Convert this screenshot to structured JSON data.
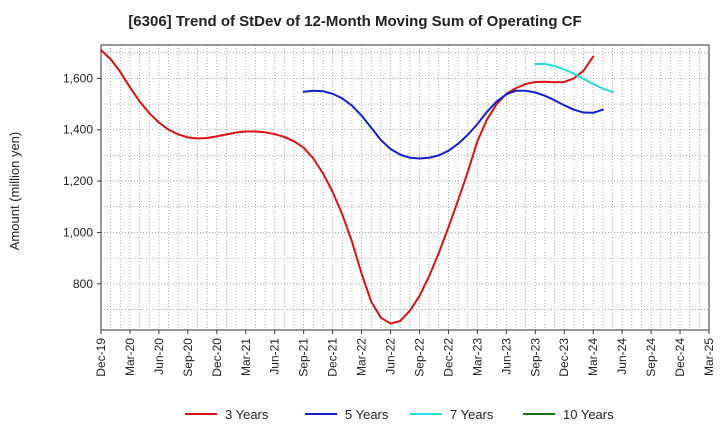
{
  "chart_data": {
    "type": "line",
    "title": "[6306]  Trend of StDev of 12-Month Moving Sum of Operating CF",
    "xlabel": "",
    "ylabel": "Amount (million yen)",
    "ylim": [
      620,
      1730
    ],
    "yticks": [
      800,
      1000,
      1200,
      1400,
      1600
    ],
    "ytick_labels": [
      "800",
      "1,000",
      "1,200",
      "1,400",
      "1,600"
    ],
    "x_start": "Dec-19",
    "x_end": "Mar-25",
    "xtick_labels": [
      "Dec-19",
      "Mar-20",
      "Jun-20",
      "Sep-20",
      "Dec-20",
      "Mar-21",
      "Jun-21",
      "Sep-21",
      "Dec-21",
      "Mar-22",
      "Jun-22",
      "Sep-22",
      "Dec-22",
      "Mar-23",
      "Jun-23",
      "Sep-23",
      "Dec-23",
      "Mar-24",
      "Jun-24",
      "Sep-24",
      "Dec-24",
      "Mar-25"
    ],
    "grid": true,
    "legend_position": "bottom",
    "series": [
      {
        "name": "3 Years",
        "color": "#dd1111",
        "start_month": 0,
        "values": [
          1710,
          1675,
          1625,
          1565,
          1510,
          1465,
          1428,
          1400,
          1382,
          1370,
          1366,
          1368,
          1374,
          1382,
          1389,
          1393,
          1393,
          1390,
          1383,
          1372,
          1355,
          1330,
          1288,
          1230,
          1158,
          1070,
          965,
          840,
          730,
          668,
          645,
          655,
          695,
          752,
          830,
          920,
          1020,
          1125,
          1235,
          1355,
          1440,
          1500,
          1540,
          1562,
          1578,
          1586,
          1587,
          1585,
          1586,
          1600,
          1630,
          1685
        ]
      },
      {
        "name": "5 Years",
        "color": "#1122cc",
        "start_month": 21,
        "values": [
          1548,
          1552,
          1550,
          1540,
          1522,
          1494,
          1455,
          1408,
          1360,
          1325,
          1303,
          1291,
          1288,
          1291,
          1300,
          1318,
          1345,
          1380,
          1422,
          1470,
          1510,
          1538,
          1552,
          1552,
          1545,
          1532,
          1515,
          1495,
          1478,
          1467,
          1466,
          1478
        ]
      },
      {
        "name": "7 Years",
        "color": "#22dddd",
        "start_month": 45,
        "values": [
          1656,
          1656,
          1648,
          1635,
          1618,
          1598,
          1578,
          1560,
          1547
        ]
      },
      {
        "name": "10 Years",
        "color": "#117711",
        "start_month": 0,
        "values": []
      }
    ]
  }
}
